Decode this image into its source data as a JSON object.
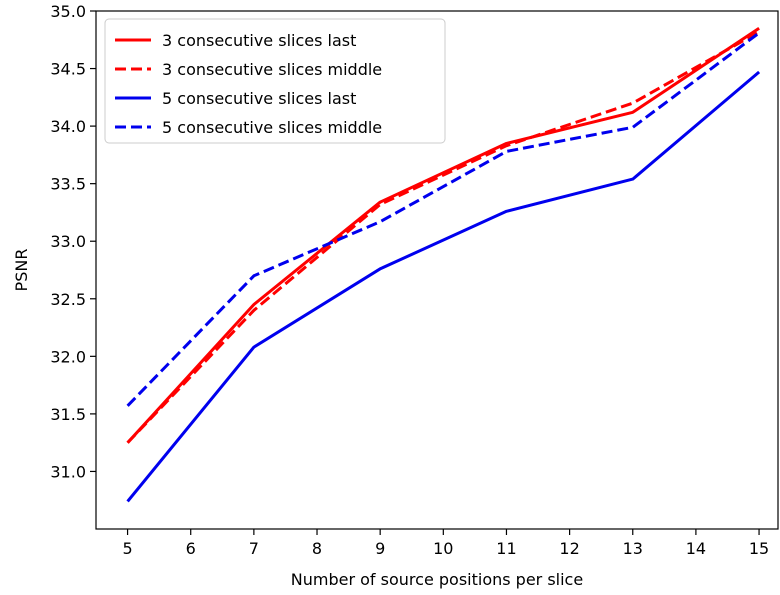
{
  "chart_data": {
    "type": "line",
    "title": "",
    "xlabel": "Number of source positions per slice",
    "ylabel": "PSNR",
    "xlim": [
      4.5,
      15.3
    ],
    "ylim": [
      30.5,
      35.0
    ],
    "xticks": [
      5,
      6,
      7,
      8,
      9,
      10,
      11,
      12,
      13,
      14,
      15
    ],
    "yticks": [
      "31.0",
      "31.5",
      "32.0",
      "32.5",
      "33.0",
      "33.5",
      "34.0",
      "34.5",
      "35.0"
    ],
    "legend_position": "top-left",
    "grid": false,
    "x": [
      5,
      7,
      9,
      11,
      13,
      15
    ],
    "series": [
      {
        "name": "3 consecutive slices last",
        "color": "#ff0000",
        "style": "solid",
        "values": [
          31.25,
          32.45,
          33.34,
          33.85,
          34.12,
          34.85
        ]
      },
      {
        "name": "3 consecutive slices middle",
        "color": "#ff0000",
        "style": "dashed",
        "values": [
          31.25,
          32.4,
          33.32,
          33.83,
          34.2,
          34.82
        ]
      },
      {
        "name": "5 consecutive slices last",
        "color": "#0000ee",
        "style": "solid",
        "values": [
          30.74,
          32.08,
          32.76,
          33.26,
          33.54,
          34.47
        ]
      },
      {
        "name": "5 consecutive slices middle",
        "color": "#0000ee",
        "style": "dashed",
        "values": [
          31.57,
          32.7,
          33.17,
          33.78,
          33.99,
          34.81
        ]
      }
    ]
  }
}
